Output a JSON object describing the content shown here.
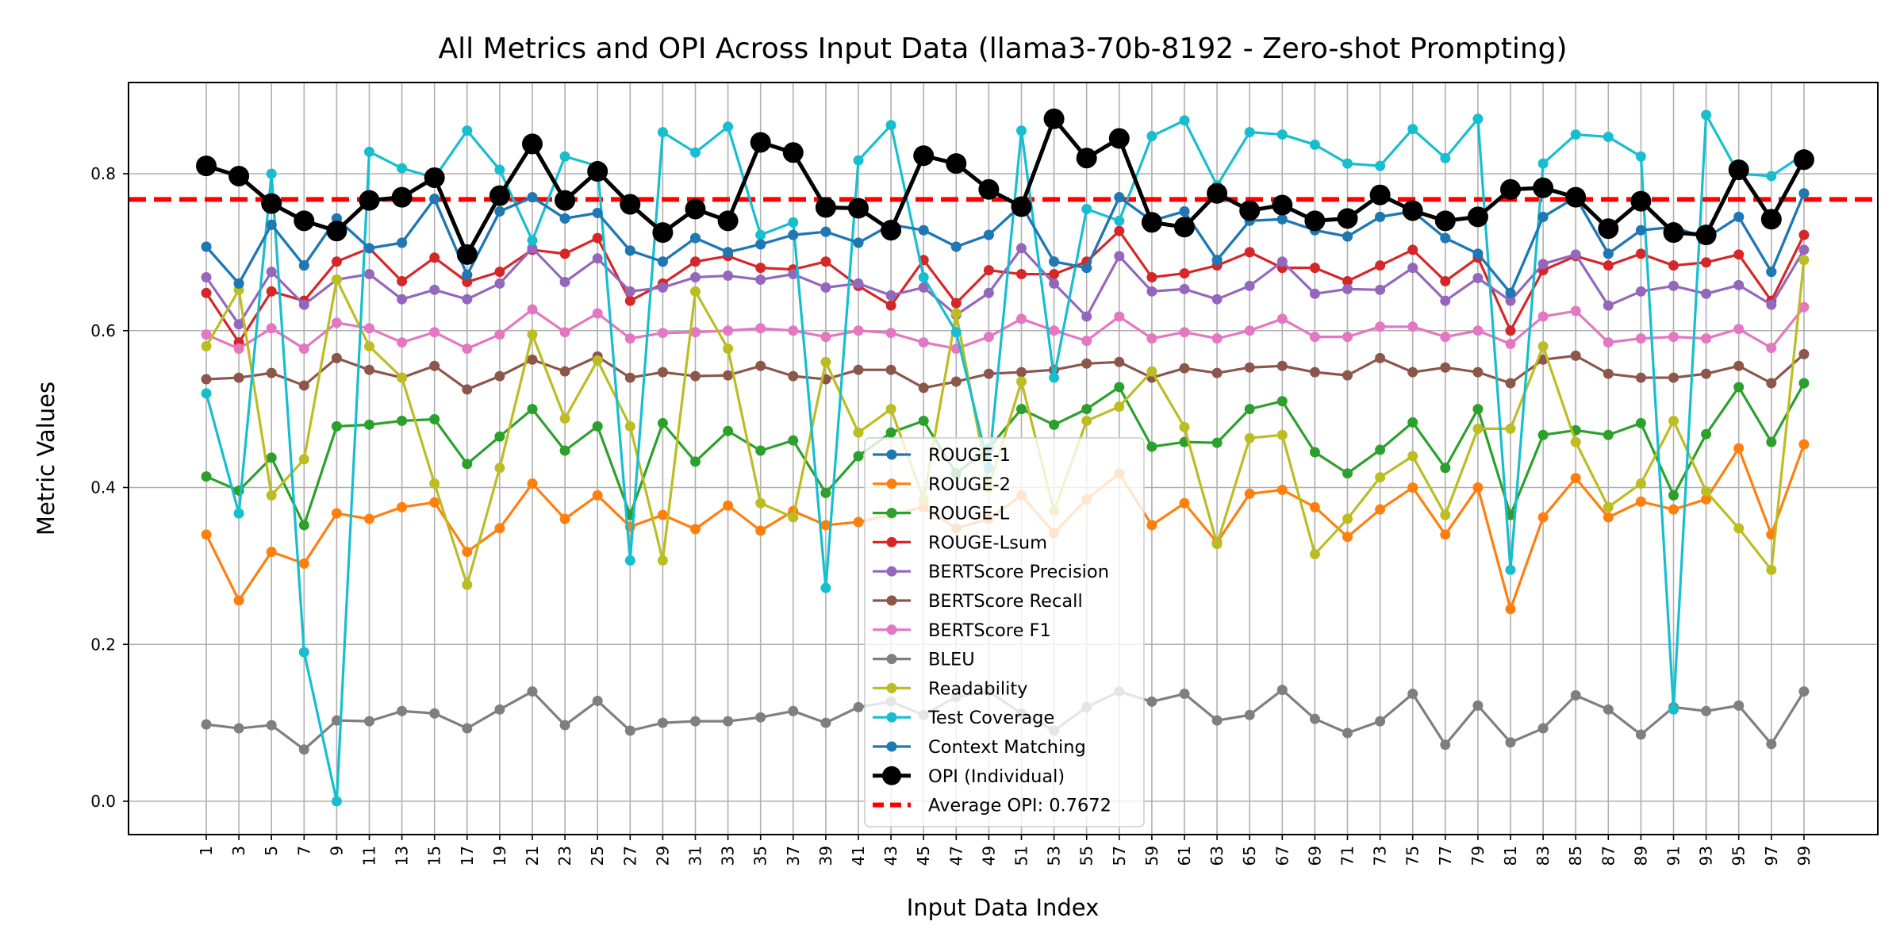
{
  "chart_data": {
    "type": "line",
    "title": "All Metrics and OPI Across Input Data (llama3-70b-8192 - Zero-shot Prompting)",
    "xlabel": "Input Data Index",
    "ylabel": "Metric Values",
    "ylim": [
      -0.045,
      0.915
    ],
    "yticks": [
      0.0,
      0.2,
      0.4,
      0.6,
      0.8
    ],
    "ytick_labels": [
      "0.0",
      "0.2",
      "0.4",
      "0.6",
      "0.8"
    ],
    "grid": true,
    "legend_position": "bottom-center",
    "x": [
      1,
      3,
      5,
      7,
      9,
      11,
      13,
      15,
      17,
      19,
      21,
      23,
      25,
      27,
      29,
      31,
      33,
      35,
      37,
      39,
      41,
      43,
      45,
      47,
      49,
      51,
      53,
      55,
      57,
      59,
      61,
      63,
      65,
      67,
      69,
      71,
      73,
      75,
      77,
      79,
      81,
      83,
      85,
      87,
      89,
      91,
      93,
      95,
      97,
      99
    ],
    "x_tick_labels": [
      "1",
      "3",
      "5",
      "7",
      "9",
      "11",
      "13",
      "15",
      "17",
      "19",
      "21",
      "23",
      "25",
      "27",
      "29",
      "31",
      "33",
      "35",
      "37",
      "39",
      "41",
      "43",
      "45",
      "47",
      "49",
      "51",
      "53",
      "55",
      "57",
      "59",
      "61",
      "63",
      "65",
      "67",
      "69",
      "71",
      "73",
      "75",
      "77",
      "79",
      "81",
      "83",
      "85",
      "87",
      "89",
      "91",
      "93",
      "95",
      "97",
      "99"
    ],
    "series": [
      {
        "name": "ROUGE-1",
        "color": "#1f77b4",
        "values": [
          0.707,
          0.66,
          0.735,
          0.683,
          0.743,
          0.705,
          0.712,
          0.768,
          0.671,
          0.752,
          0.77,
          0.743,
          0.75,
          0.702,
          0.688,
          0.718,
          0.7,
          0.71,
          0.722,
          0.726,
          0.712,
          0.735,
          0.728,
          0.707,
          0.722,
          0.76,
          0.688,
          0.68,
          0.77,
          0.74,
          0.752,
          0.69,
          0.74,
          0.742,
          0.728,
          0.72,
          0.745,
          0.752,
          0.718,
          0.698,
          0.648,
          0.745,
          0.77,
          0.698,
          0.728,
          0.732,
          0.718,
          0.745,
          0.675,
          0.775
        ]
      },
      {
        "name": "ROUGE-2",
        "color": "#ff7f0e",
        "values": [
          0.34,
          0.256,
          0.318,
          0.303,
          0.367,
          0.36,
          0.375,
          0.381,
          0.318,
          0.348,
          0.405,
          0.36,
          0.39,
          0.35,
          0.365,
          0.347,
          0.377,
          0.345,
          0.37,
          0.352,
          0.356,
          0.365,
          0.375,
          0.348,
          0.36,
          0.39,
          0.342,
          0.385,
          0.418,
          0.352,
          0.38,
          0.33,
          0.392,
          0.397,
          0.375,
          0.337,
          0.372,
          0.4,
          0.34,
          0.4,
          0.245,
          0.362,
          0.412,
          0.362,
          0.382,
          0.372,
          0.385,
          0.45,
          0.34,
          0.455
        ]
      },
      {
        "name": "ROUGE-L",
        "color": "#2ca02c",
        "values": [
          0.414,
          0.396,
          0.438,
          0.352,
          0.478,
          0.48,
          0.485,
          0.487,
          0.43,
          0.465,
          0.5,
          0.447,
          0.478,
          0.365,
          0.482,
          0.433,
          0.472,
          0.447,
          0.46,
          0.393,
          0.44,
          0.47,
          0.485,
          0.418,
          0.45,
          0.5,
          0.48,
          0.5,
          0.528,
          0.452,
          0.458,
          0.457,
          0.5,
          0.51,
          0.445,
          0.418,
          0.448,
          0.483,
          0.425,
          0.5,
          0.365,
          0.467,
          0.473,
          0.467,
          0.482,
          0.39,
          0.468,
          0.528,
          0.458,
          0.533
        ]
      },
      {
        "name": "ROUGE-Lsum",
        "color": "#d62728",
        "values": [
          0.648,
          0.585,
          0.65,
          0.638,
          0.688,
          0.705,
          0.663,
          0.693,
          0.662,
          0.675,
          0.703,
          0.698,
          0.718,
          0.638,
          0.66,
          0.688,
          0.695,
          0.68,
          0.678,
          0.688,
          0.657,
          0.632,
          0.69,
          0.635,
          0.677,
          0.672,
          0.672,
          0.688,
          0.727,
          0.668,
          0.673,
          0.683,
          0.7,
          0.68,
          0.68,
          0.663,
          0.683,
          0.703,
          0.663,
          0.693,
          0.6,
          0.677,
          0.695,
          0.683,
          0.698,
          0.683,
          0.687,
          0.697,
          0.638,
          0.722
        ]
      },
      {
        "name": "BERTScore Precision",
        "color": "#9467bd",
        "values": [
          0.668,
          0.608,
          0.675,
          0.633,
          0.665,
          0.672,
          0.64,
          0.652,
          0.64,
          0.66,
          0.705,
          0.662,
          0.692,
          0.65,
          0.655,
          0.668,
          0.67,
          0.665,
          0.672,
          0.655,
          0.66,
          0.645,
          0.655,
          0.62,
          0.648,
          0.705,
          0.66,
          0.618,
          0.695,
          0.65,
          0.653,
          0.64,
          0.657,
          0.688,
          0.647,
          0.653,
          0.652,
          0.68,
          0.638,
          0.667,
          0.638,
          0.685,
          0.697,
          0.632,
          0.65,
          0.657,
          0.647,
          0.658,
          0.633,
          0.703
        ]
      },
      {
        "name": "BERTScore Recall",
        "color": "#8c564b",
        "values": [
          0.538,
          0.54,
          0.546,
          0.53,
          0.565,
          0.55,
          0.54,
          0.555,
          0.525,
          0.542,
          0.563,
          0.548,
          0.567,
          0.54,
          0.547,
          0.542,
          0.543,
          0.555,
          0.542,
          0.538,
          0.55,
          0.55,
          0.527,
          0.535,
          0.545,
          0.547,
          0.55,
          0.558,
          0.56,
          0.54,
          0.552,
          0.546,
          0.553,
          0.555,
          0.547,
          0.543,
          0.565,
          0.547,
          0.553,
          0.547,
          0.533,
          0.563,
          0.568,
          0.545,
          0.54,
          0.54,
          0.545,
          0.555,
          0.533,
          0.57
        ]
      },
      {
        "name": "BERTScore F1",
        "color": "#e377c2",
        "values": [
          0.595,
          0.577,
          0.603,
          0.577,
          0.61,
          0.603,
          0.585,
          0.598,
          0.577,
          0.595,
          0.627,
          0.598,
          0.622,
          0.59,
          0.597,
          0.598,
          0.6,
          0.603,
          0.6,
          0.592,
          0.6,
          0.597,
          0.585,
          0.577,
          0.592,
          0.615,
          0.6,
          0.587,
          0.618,
          0.59,
          0.598,
          0.59,
          0.6,
          0.615,
          0.592,
          0.592,
          0.605,
          0.605,
          0.592,
          0.6,
          0.583,
          0.618,
          0.625,
          0.585,
          0.59,
          0.592,
          0.59,
          0.602,
          0.578,
          0.63
        ]
      },
      {
        "name": "BLEU",
        "color": "#7f7f7f",
        "values": [
          0.098,
          0.093,
          0.097,
          0.066,
          0.103,
          0.102,
          0.115,
          0.112,
          0.093,
          0.117,
          0.14,
          0.097,
          0.128,
          0.09,
          0.1,
          0.102,
          0.102,
          0.107,
          0.115,
          0.1,
          0.12,
          0.127,
          0.11,
          0.133,
          0.14,
          0.112,
          0.09,
          0.12,
          0.14,
          0.127,
          0.137,
          0.103,
          0.11,
          0.142,
          0.105,
          0.087,
          0.102,
          0.137,
          0.072,
          0.122,
          0.075,
          0.093,
          0.135,
          0.117,
          0.085,
          0.12,
          0.115,
          0.122,
          0.073,
          0.14
        ]
      },
      {
        "name": "Readability",
        "color": "#bcbd22",
        "values": [
          0.58,
          0.652,
          0.39,
          0.436,
          0.665,
          0.58,
          0.54,
          0.405,
          0.276,
          0.425,
          0.595,
          0.488,
          0.562,
          0.478,
          0.307,
          0.65,
          0.577,
          0.38,
          0.362,
          0.56,
          0.47,
          0.5,
          0.385,
          0.622,
          0.4,
          0.535,
          0.37,
          0.485,
          0.503,
          0.548,
          0.477,
          0.328,
          0.463,
          0.467,
          0.315,
          0.36,
          0.413,
          0.44,
          0.365,
          0.475,
          0.475,
          0.58,
          0.458,
          0.375,
          0.405,
          0.485,
          0.395,
          0.348,
          0.295,
          0.69
        ]
      },
      {
        "name": "Test Coverage",
        "color": "#17becf",
        "values": [
          0.52,
          0.367,
          0.8,
          0.19,
          0.0,
          0.828,
          0.807,
          0.795,
          0.855,
          0.805,
          0.715,
          0.822,
          0.81,
          0.307,
          0.853,
          0.827,
          0.86,
          0.722,
          0.738,
          0.272,
          0.817,
          0.862,
          0.668,
          0.598,
          0.425,
          0.855,
          0.54,
          0.755,
          0.74,
          0.848,
          0.868,
          0.785,
          0.853,
          0.85,
          0.837,
          0.813,
          0.81,
          0.857,
          0.82,
          0.87,
          0.295,
          0.813,
          0.85,
          0.847,
          0.822,
          0.117,
          0.875,
          0.8,
          0.797,
          0.825
        ]
      },
      {
        "name": "Context Matching",
        "color": "#1f77b4",
        "values": [
          0.707,
          0.66,
          0.735,
          0.683,
          0.743,
          0.705,
          0.712,
          0.768,
          0.671,
          0.752,
          0.77,
          0.743,
          0.75,
          0.702,
          0.688,
          0.718,
          0.7,
          0.71,
          0.722,
          0.726,
          0.712,
          0.735,
          0.728,
          0.707,
          0.722,
          0.76,
          0.688,
          0.68,
          0.77,
          0.74,
          0.752,
          0.69,
          0.74,
          0.742,
          0.728,
          0.72,
          0.745,
          0.752,
          0.718,
          0.698,
          0.648,
          0.745,
          0.77,
          0.698,
          0.728,
          0.732,
          0.718,
          0.745,
          0.675,
          0.775
        ]
      },
      {
        "name": "OPI (Individual)",
        "color": "#000000",
        "values": [
          0.81,
          0.797,
          0.762,
          0.74,
          0.727,
          0.766,
          0.77,
          0.795,
          0.697,
          0.772,
          0.838,
          0.766,
          0.803,
          0.761,
          0.725,
          0.755,
          0.74,
          0.84,
          0.827,
          0.757,
          0.756,
          0.728,
          0.823,
          0.813,
          0.78,
          0.758,
          0.87,
          0.82,
          0.845,
          0.738,
          0.732,
          0.775,
          0.753,
          0.76,
          0.74,
          0.743,
          0.773,
          0.753,
          0.74,
          0.745,
          0.78,
          0.782,
          0.77,
          0.73,
          0.765,
          0.725,
          0.722,
          0.805,
          0.742,
          0.818
        ]
      }
    ],
    "average_line": {
      "label": "Average OPI: 0.7672",
      "value": 0.7672,
      "color": "#ff0000"
    },
    "legend": [
      "ROUGE-1",
      "ROUGE-2",
      "ROUGE-L",
      "ROUGE-Lsum",
      "BERTScore Precision",
      "BERTScore Recall",
      "BERTScore F1",
      "BLEU",
      "Readability",
      "Test Coverage",
      "Context Matching",
      "OPI (Individual)",
      "Average OPI: 0.7672"
    ]
  }
}
